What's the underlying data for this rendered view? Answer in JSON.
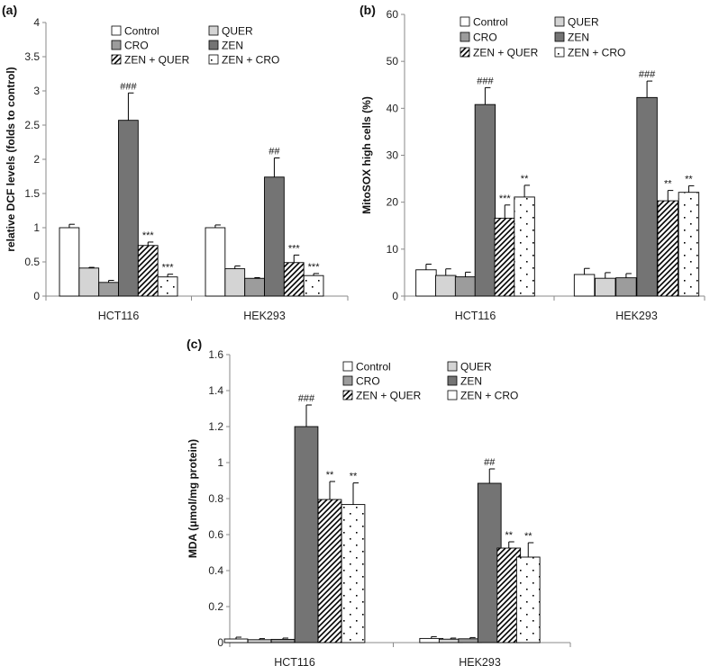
{
  "panels": [
    {
      "id": "a",
      "label": "(a)",
      "chart_data": {
        "type": "bar",
        "title": "",
        "xlabel": "",
        "ylabel": "relative DCF levels (folds to control)",
        "ylim": [
          0,
          4
        ],
        "yticks": [
          "0",
          "0.5",
          "1",
          "1.5",
          "2",
          "2.5",
          "3",
          "3.5",
          "4"
        ],
        "categories": [
          "HCT116",
          "HEK293"
        ],
        "legend_position": "top",
        "series": [
          {
            "name": "Control",
            "pattern": "white",
            "values": [
              1.0,
              1.0
            ],
            "errors": [
              0.05,
              0.04
            ],
            "annotations": [
              "",
              ""
            ]
          },
          {
            "name": "QUER",
            "pattern": "light",
            "values": [
              0.41,
              0.4
            ],
            "errors": [
              0.01,
              0.04
            ],
            "annotations": [
              "",
              ""
            ]
          },
          {
            "name": "CRO",
            "pattern": "mid",
            "values": [
              0.2,
              0.26
            ],
            "errors": [
              0.03,
              0.01
            ],
            "annotations": [
              "",
              ""
            ]
          },
          {
            "name": "ZEN",
            "pattern": "dark",
            "values": [
              2.57,
              1.74
            ],
            "errors": [
              0.4,
              0.28
            ],
            "annotations": [
              "###",
              "##"
            ]
          },
          {
            "name": "ZEN + QUER",
            "pattern": "hatch",
            "values": [
              0.74,
              0.49
            ],
            "errors": [
              0.05,
              0.11
            ],
            "annotations": [
              "***",
              "***"
            ]
          },
          {
            "name": "ZEN + CRO",
            "pattern": "dots",
            "values": [
              0.28,
              0.3
            ],
            "errors": [
              0.04,
              0.03
            ],
            "annotations": [
              "***",
              "***"
            ]
          }
        ]
      }
    },
    {
      "id": "b",
      "label": "(b)",
      "chart_data": {
        "type": "bar",
        "title": "",
        "xlabel": "",
        "ylabel": "MitoSOX high cells (%)",
        "ylim": [
          0,
          60
        ],
        "yticks": [
          "0",
          "10",
          "20",
          "30",
          "40",
          "50",
          "60"
        ],
        "categories": [
          "HCT116",
          "HEK293"
        ],
        "legend_position": "top",
        "series": [
          {
            "name": "Control",
            "pattern": "white",
            "values": [
              5.6,
              4.6
            ],
            "errors": [
              1.2,
              1.3
            ],
            "annotations": [
              "",
              ""
            ]
          },
          {
            "name": "QUER",
            "pattern": "light",
            "values": [
              4.4,
              3.8
            ],
            "errors": [
              1.4,
              1.2
            ],
            "annotations": [
              "",
              ""
            ]
          },
          {
            "name": "CRO",
            "pattern": "mid",
            "values": [
              4.1,
              3.9
            ],
            "errors": [
              1.0,
              0.9
            ],
            "annotations": [
              "",
              ""
            ]
          },
          {
            "name": "ZEN",
            "pattern": "dark",
            "values": [
              40.8,
              42.3
            ],
            "errors": [
              3.6,
              3.5
            ],
            "annotations": [
              "###",
              "###"
            ]
          },
          {
            "name": "ZEN + QUER",
            "pattern": "hatch",
            "values": [
              16.6,
              20.3
            ],
            "errors": [
              2.8,
              2.2
            ],
            "annotations": [
              "***",
              "**"
            ]
          },
          {
            "name": "ZEN + CRO",
            "pattern": "dots",
            "values": [
              21.1,
              22.1
            ],
            "errors": [
              2.5,
              1.4
            ],
            "annotations": [
              "**",
              "**"
            ]
          }
        ]
      }
    },
    {
      "id": "c",
      "label": "(c)",
      "chart_data": {
        "type": "bar",
        "title": "",
        "xlabel": "",
        "ylabel": "MDA (μmol/mg protein)",
        "ylim": [
          0,
          1.6
        ],
        "yticks": [
          "0",
          "0.2",
          "0.4",
          "0.6",
          "0.8",
          "1",
          "1.2",
          "1.4",
          "1.6"
        ],
        "categories": [
          "HCT116",
          "HEK293"
        ],
        "legend_position": "top",
        "series": [
          {
            "name": "Control",
            "pattern": "white",
            "values": [
              0.02,
              0.023
            ],
            "errors": [
              0.01,
              0.01
            ],
            "annotations": [
              "",
              ""
            ]
          },
          {
            "name": "QUER",
            "pattern": "light",
            "values": [
              0.016,
              0.019
            ],
            "errors": [
              0.006,
              0.006
            ],
            "annotations": [
              "",
              ""
            ]
          },
          {
            "name": "CRO",
            "pattern": "mid",
            "values": [
              0.018,
              0.021
            ],
            "errors": [
              0.007,
              0.007
            ],
            "annotations": [
              "",
              ""
            ]
          },
          {
            "name": "ZEN",
            "pattern": "dark",
            "values": [
              1.2,
              0.885
            ],
            "errors": [
              0.12,
              0.08
            ],
            "annotations": [
              "###",
              "##"
            ]
          },
          {
            "name": "ZEN + QUER",
            "pattern": "hatch",
            "values": [
              0.795,
              0.525
            ],
            "errors": [
              0.1,
              0.035
            ],
            "annotations": [
              "**",
              "**"
            ]
          },
          {
            "name": "ZEN + CRO",
            "pattern": "dots",
            "values": [
              0.767,
              0.475
            ],
            "errors": [
              0.12,
              0.08
            ],
            "annotations": [
              "**",
              "**"
            ]
          }
        ]
      }
    }
  ],
  "colors": {
    "white": "#ffffff",
    "light": "#d4d4d4",
    "mid": "#9c9c9c",
    "dark": "#747474",
    "outline": "#000000",
    "axis": "#8a8a8a"
  }
}
